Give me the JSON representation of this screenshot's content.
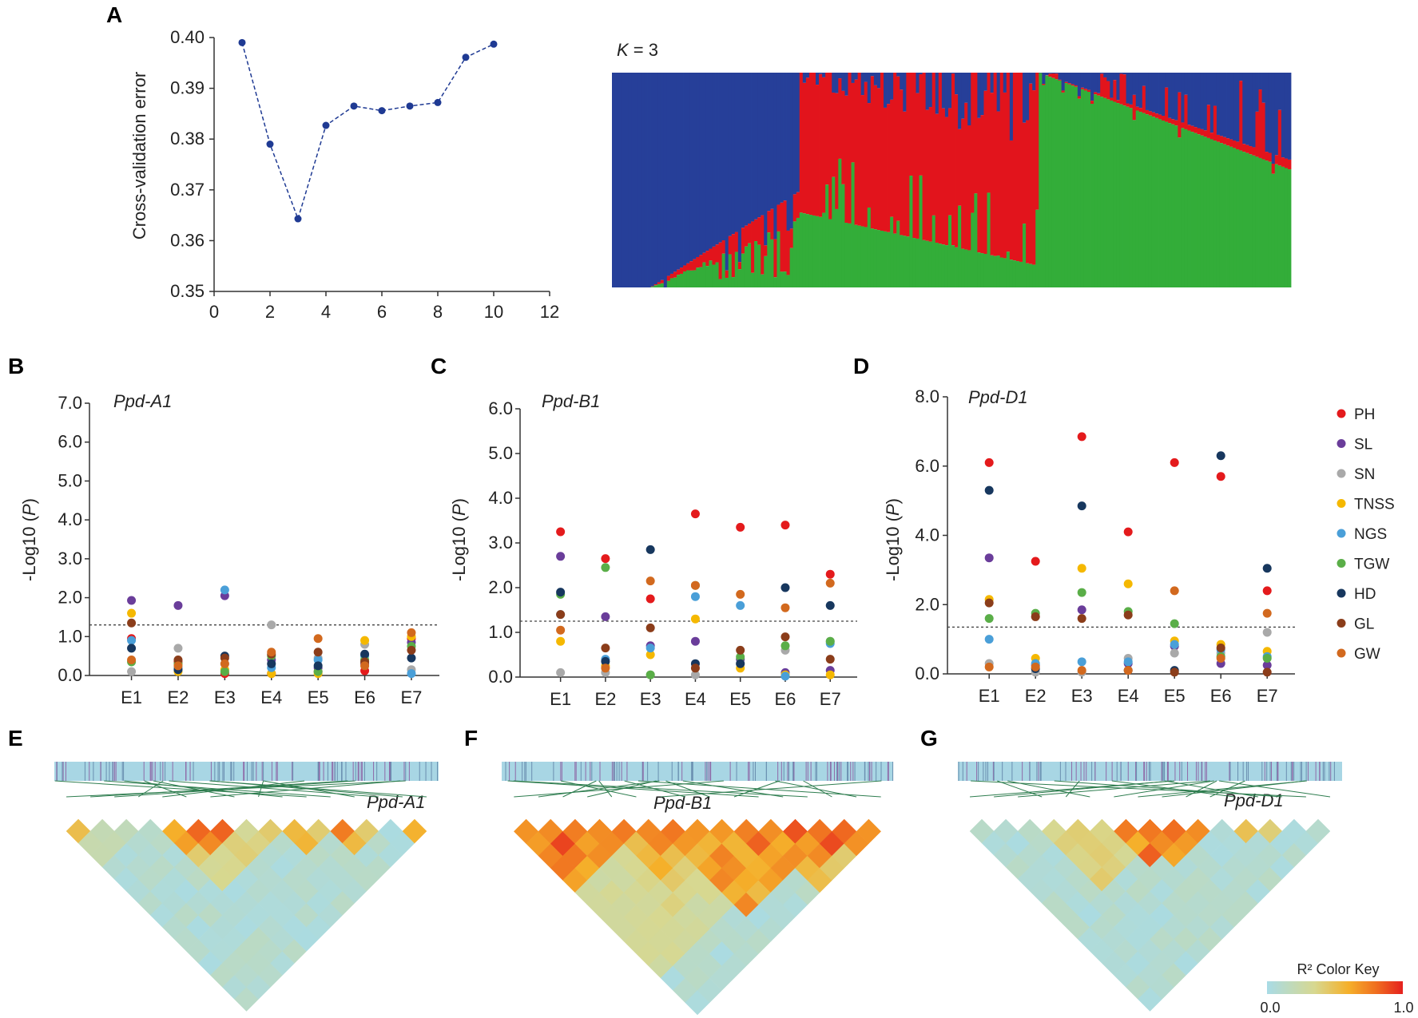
{
  "panels": {
    "A": "A",
    "B": "B",
    "C": "C",
    "D": "D",
    "E": "E",
    "F": "F",
    "G": "G"
  },
  "chart_data": [
    {
      "panel": "A",
      "type": "line",
      "ylabel": "Cross-validation error",
      "x": [
        1,
        2,
        3,
        4,
        5,
        6,
        7,
        8,
        9,
        10
      ],
      "y": [
        0.399,
        0.379,
        0.3643,
        0.3827,
        0.3865,
        0.3856,
        0.3865,
        0.3872,
        0.3961,
        0.3987
      ],
      "xlim": [
        0,
        12
      ],
      "ylim": [
        0.35,
        0.4
      ],
      "xticks": [
        "0",
        "2",
        "4",
        "6",
        "8",
        "10",
        "12"
      ],
      "yticks": [
        "0.35",
        "0.36",
        "0.37",
        "0.38",
        "0.39",
        "0.40"
      ],
      "color": "#1f3a93"
    },
    {
      "panel": "A-structure",
      "type": "bar",
      "title_k": "K",
      "title_eq": " = 3",
      "stacked": true,
      "note": "Admixture proportions per accession (sorted by cluster)",
      "series": [
        {
          "name": "cluster-blue",
          "color": "#263f99"
        },
        {
          "name": "cluster-red",
          "color": "#e2141c"
        },
        {
          "name": "cluster-green",
          "color": "#33ad39"
        }
      ]
    },
    {
      "panel": "B",
      "type": "scatter",
      "gene": "Ppd-A1",
      "ylabel": "-Log10 (P)",
      "categories": [
        "E1",
        "E2",
        "E3",
        "E4",
        "E5",
        "E6",
        "E7"
      ],
      "yticks": [
        "0.0",
        "1.0",
        "2.0",
        "3.0",
        "4.0",
        "5.0",
        "6.0",
        "7.0"
      ],
      "ylim": [
        0,
        7
      ],
      "threshold": 1.3,
      "series": [
        {
          "name": "PH",
          "values": [
            0.95,
            0.35,
            0.05,
            0.05,
            0.1,
            0.12,
            0.95
          ]
        },
        {
          "name": "SL",
          "values": [
            1.93,
            1.8,
            2.05,
            0.4,
            0.2,
            0.3,
            0.85
          ]
        },
        {
          "name": "SN",
          "values": [
            0.1,
            0.7,
            0.3,
            1.3,
            0.45,
            0.8,
            0.15
          ]
        },
        {
          "name": "TNSS",
          "values": [
            1.6,
            0.1,
            0.15,
            0.05,
            0.05,
            0.9,
            1.0
          ]
        },
        {
          "name": "NGS",
          "values": [
            0.9,
            0.2,
            2.2,
            0.2,
            0.4,
            0.5,
            0.05
          ]
        },
        {
          "name": "TGW",
          "values": [
            0.35,
            0.3,
            0.1,
            0.5,
            0.1,
            0.4,
            0.75
          ]
        },
        {
          "name": "HD",
          "values": [
            0.7,
            0.15,
            0.5,
            0.3,
            0.25,
            0.55,
            0.45
          ]
        },
        {
          "name": "GL",
          "values": [
            1.35,
            0.4,
            0.45,
            0.55,
            0.6,
            0.35,
            0.65
          ]
        },
        {
          "name": "GW",
          "values": [
            0.4,
            0.25,
            0.3,
            0.6,
            0.95,
            0.25,
            1.1
          ]
        }
      ]
    },
    {
      "panel": "C",
      "type": "scatter",
      "gene": "Ppd-B1",
      "ylabel": "-Log10 (P)",
      "categories": [
        "E1",
        "E2",
        "E3",
        "E4",
        "E5",
        "E6",
        "E7"
      ],
      "yticks": [
        "0.0",
        "1.0",
        "2.0",
        "3.0",
        "4.0",
        "5.0",
        "6.0"
      ],
      "ylim": [
        0,
        6
      ],
      "threshold": 1.25,
      "series": [
        {
          "name": "PH",
          "values": [
            3.25,
            2.65,
            1.75,
            3.65,
            3.35,
            3.4,
            2.3
          ]
        },
        {
          "name": "SL",
          "values": [
            2.7,
            1.35,
            0.7,
            0.8,
            0.4,
            0.1,
            0.15
          ]
        },
        {
          "name": "SN",
          "values": [
            0.1,
            0.1,
            0.05,
            0.05,
            0.3,
            0.6,
            0.8
          ]
        },
        {
          "name": "TNSS",
          "values": [
            0.8,
            0.25,
            0.5,
            1.3,
            0.2,
            0.05,
            0.05
          ]
        },
        {
          "name": "NGS",
          "values": [
            1.4,
            0.4,
            0.65,
            1.8,
            1.6,
            0.02,
            0.75
          ]
        },
        {
          "name": "TGW",
          "values": [
            1.85,
            2.45,
            0.05,
            2.05,
            0.45,
            0.7,
            0.8
          ]
        },
        {
          "name": "HD",
          "values": [
            1.9,
            0.35,
            2.85,
            0.3,
            0.3,
            2.0,
            1.6
          ]
        },
        {
          "name": "GL",
          "values": [
            1.4,
            0.65,
            1.1,
            0.2,
            0.6,
            0.9,
            0.4
          ]
        },
        {
          "name": "GW",
          "values": [
            1.05,
            0.2,
            2.15,
            2.05,
            1.85,
            1.55,
            2.1
          ]
        }
      ]
    },
    {
      "panel": "D",
      "type": "scatter",
      "gene": "Ppd-D1",
      "ylabel": "-Log10 (P)",
      "categories": [
        "E1",
        "E2",
        "E3",
        "E4",
        "E5",
        "E6",
        "E7"
      ],
      "yticks": [
        "0.0",
        "2.0",
        "4.0",
        "6.0",
        "8.0"
      ],
      "ylim": [
        0,
        8
      ],
      "threshold": 1.35,
      "series": [
        {
          "name": "PH",
          "values": [
            6.1,
            3.25,
            6.85,
            4.1,
            6.1,
            5.7,
            2.4
          ]
        },
        {
          "name": "SL",
          "values": [
            3.35,
            0.25,
            1.85,
            0.3,
            0.8,
            0.3,
            0.25
          ]
        },
        {
          "name": "SN",
          "values": [
            0.3,
            0.05,
            0.05,
            0.45,
            0.6,
            0.6,
            1.2
          ]
        },
        {
          "name": "TNSS",
          "values": [
            2.15,
            0.45,
            3.05,
            2.6,
            0.95,
            0.85,
            0.65
          ]
        },
        {
          "name": "NGS",
          "values": [
            1.0,
            0.3,
            0.35,
            0.35,
            0.85,
            0.7,
            0.5
          ]
        },
        {
          "name": "TGW",
          "values": [
            1.6,
            1.75,
            2.35,
            1.8,
            1.45,
            0.5,
            0.45
          ]
        },
        {
          "name": "HD",
          "values": [
            5.3,
            0.15,
            4.85,
            0.1,
            0.1,
            6.3,
            3.05
          ]
        },
        {
          "name": "GL",
          "values": [
            2.05,
            1.65,
            1.6,
            1.7,
            0.05,
            0.75,
            0.05
          ]
        },
        {
          "name": "GW",
          "values": [
            0.2,
            0.2,
            0.1,
            0.1,
            2.4,
            0.45,
            1.75
          ]
        }
      ]
    },
    {
      "panel": "E-G",
      "type": "heatmap",
      "description": "Linkage disequilibrium (R²) triangles around Ppd genes",
      "genes": [
        "Ppd-A1",
        "Ppd-B1",
        "Ppd-D1"
      ],
      "color_key_title": "R² Color Key",
      "color_key_min": "0.0",
      "color_key_max": "1.0"
    }
  ],
  "legend": {
    "traits": [
      {
        "name": "PH",
        "color": "#e41a1c"
      },
      {
        "name": "SL",
        "color": "#6a3d9a"
      },
      {
        "name": "SN",
        "color": "#a9a9a9"
      },
      {
        "name": "TNSS",
        "color": "#f5b800"
      },
      {
        "name": "NGS",
        "color": "#4a9fd8"
      },
      {
        "name": "TGW",
        "color": "#5aae48"
      },
      {
        "name": "HD",
        "color": "#17375e"
      },
      {
        "name": "GL",
        "color": "#8b3d1a"
      },
      {
        "name": "GW",
        "color": "#d2691e"
      }
    ]
  }
}
